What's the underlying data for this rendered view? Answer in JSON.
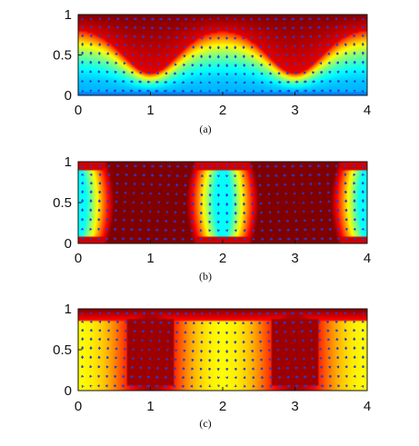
{
  "chart_data": [
    {
      "type": "heatmap",
      "caption": "(a)",
      "xlim": [
        0,
        4
      ],
      "ylim": [
        0,
        1
      ],
      "xticks": [
        "0",
        "1",
        "2",
        "3",
        "4"
      ],
      "yticks": [
        "0",
        "0.5",
        "1"
      ],
      "colormap": "jet",
      "overlay": "blue velocity vector arrows",
      "pattern": "hot layer at top dipping downward near x = 1 and x = 3"
    },
    {
      "type": "heatmap",
      "caption": "(b)",
      "xlim": [
        0,
        4
      ],
      "ylim": [
        0,
        1
      ],
      "xticks": [
        "0",
        "1",
        "2",
        "3",
        "4"
      ],
      "yticks": [
        "0",
        "0.5",
        "1"
      ],
      "colormap": "jet",
      "overlay": "blue velocity vector arrows",
      "pattern": "hot plumes spanning full height centred near x = 1 and x = 3, cool cells near x = 0, 2, 4"
    },
    {
      "type": "heatmap",
      "caption": "(c)",
      "xlim": [
        0,
        4
      ],
      "ylim": [
        0,
        1
      ],
      "xticks": [
        "0",
        "1",
        "2",
        "3",
        "4"
      ],
      "yticks": [
        "0",
        "0.5",
        "1"
      ],
      "colormap": "jet",
      "overlay": "blue velocity vector arrows",
      "pattern": "dark red cores near x = 1 and x = 3 with red top layer, yellow-green between"
    }
  ],
  "colors": {
    "arrow": "#2a3ad8",
    "frame": "#111111"
  }
}
